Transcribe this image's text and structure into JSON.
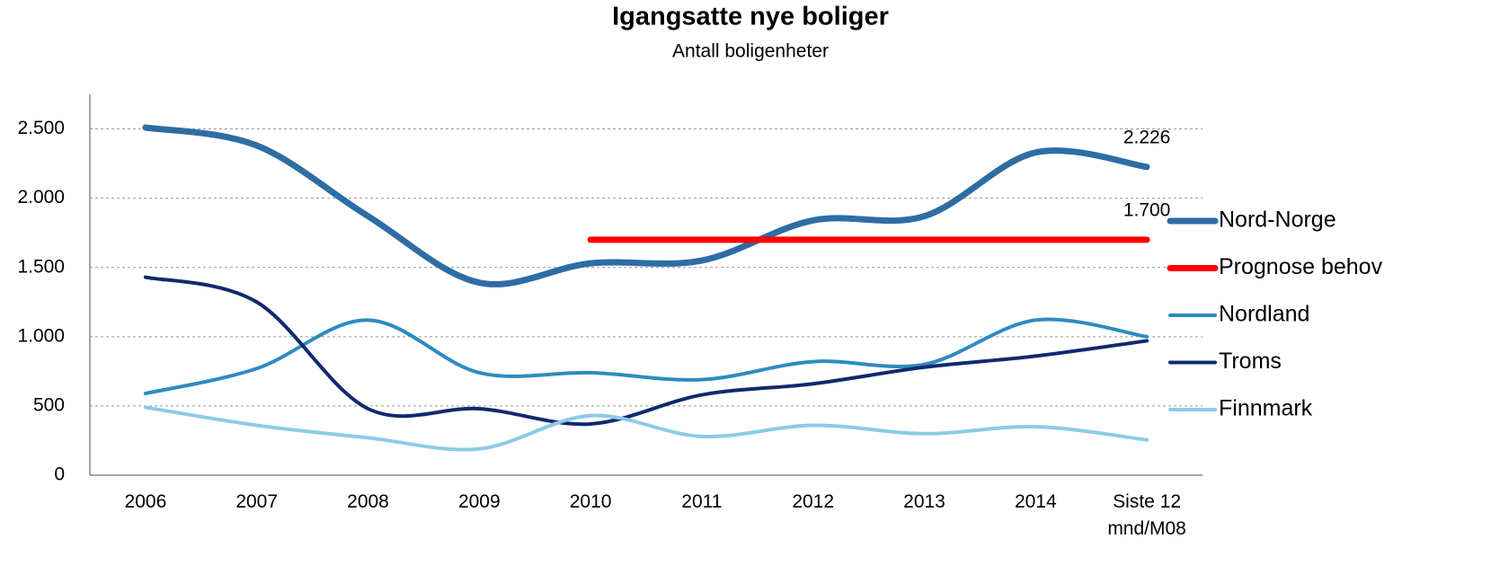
{
  "chart_data": {
    "type": "line",
    "title": "Igangsatte nye boliger",
    "subtitle": "Antall boligenheter",
    "categories": [
      "2006",
      "2007",
      "2008",
      "2009",
      "2010",
      "2011",
      "2012",
      "2013",
      "2014",
      "Siste 12 mnd/M08"
    ],
    "series": [
      {
        "name": "Nord-Norge",
        "color": "#2e6da4",
        "values": [
          2510,
          2380,
          1870,
          1390,
          1530,
          1550,
          1840,
          1870,
          2330,
          2226
        ],
        "value_labels": [
          null,
          null,
          null,
          null,
          null,
          null,
          null,
          null,
          null,
          "2.226"
        ]
      },
      {
        "name": "Prognose behov",
        "color": "#ff0000",
        "values": [
          null,
          null,
          null,
          null,
          1700,
          1700,
          1700,
          1700,
          1700,
          1700
        ],
        "value_labels": [
          null,
          null,
          null,
          null,
          null,
          null,
          null,
          null,
          null,
          "1.700"
        ]
      },
      {
        "name": "Nordland",
        "color": "#2e8bc0",
        "values": [
          590,
          770,
          1120,
          740,
          740,
          690,
          820,
          800,
          1120,
          1000
        ]
      },
      {
        "name": "Troms",
        "color": "#10296e",
        "values": [
          1430,
          1250,
          480,
          480,
          370,
          580,
          660,
          780,
          860,
          970
        ]
      },
      {
        "name": "Finnmark",
        "color": "#8ccbe8",
        "values": [
          490,
          360,
          270,
          190,
          430,
          280,
          360,
          300,
          350,
          255
        ]
      }
    ],
    "ylim": [
      0,
      2750
    ],
    "yticks": [
      0,
      500,
      {
        "value": 1000,
        "label": "1.000"
      },
      {
        "value": 1500,
        "label": "1.500"
      },
      {
        "value": 2000,
        "label": "2.000"
      },
      {
        "value": 2500,
        "label": "2.500"
      }
    ],
    "grid": true,
    "legend": "right"
  }
}
